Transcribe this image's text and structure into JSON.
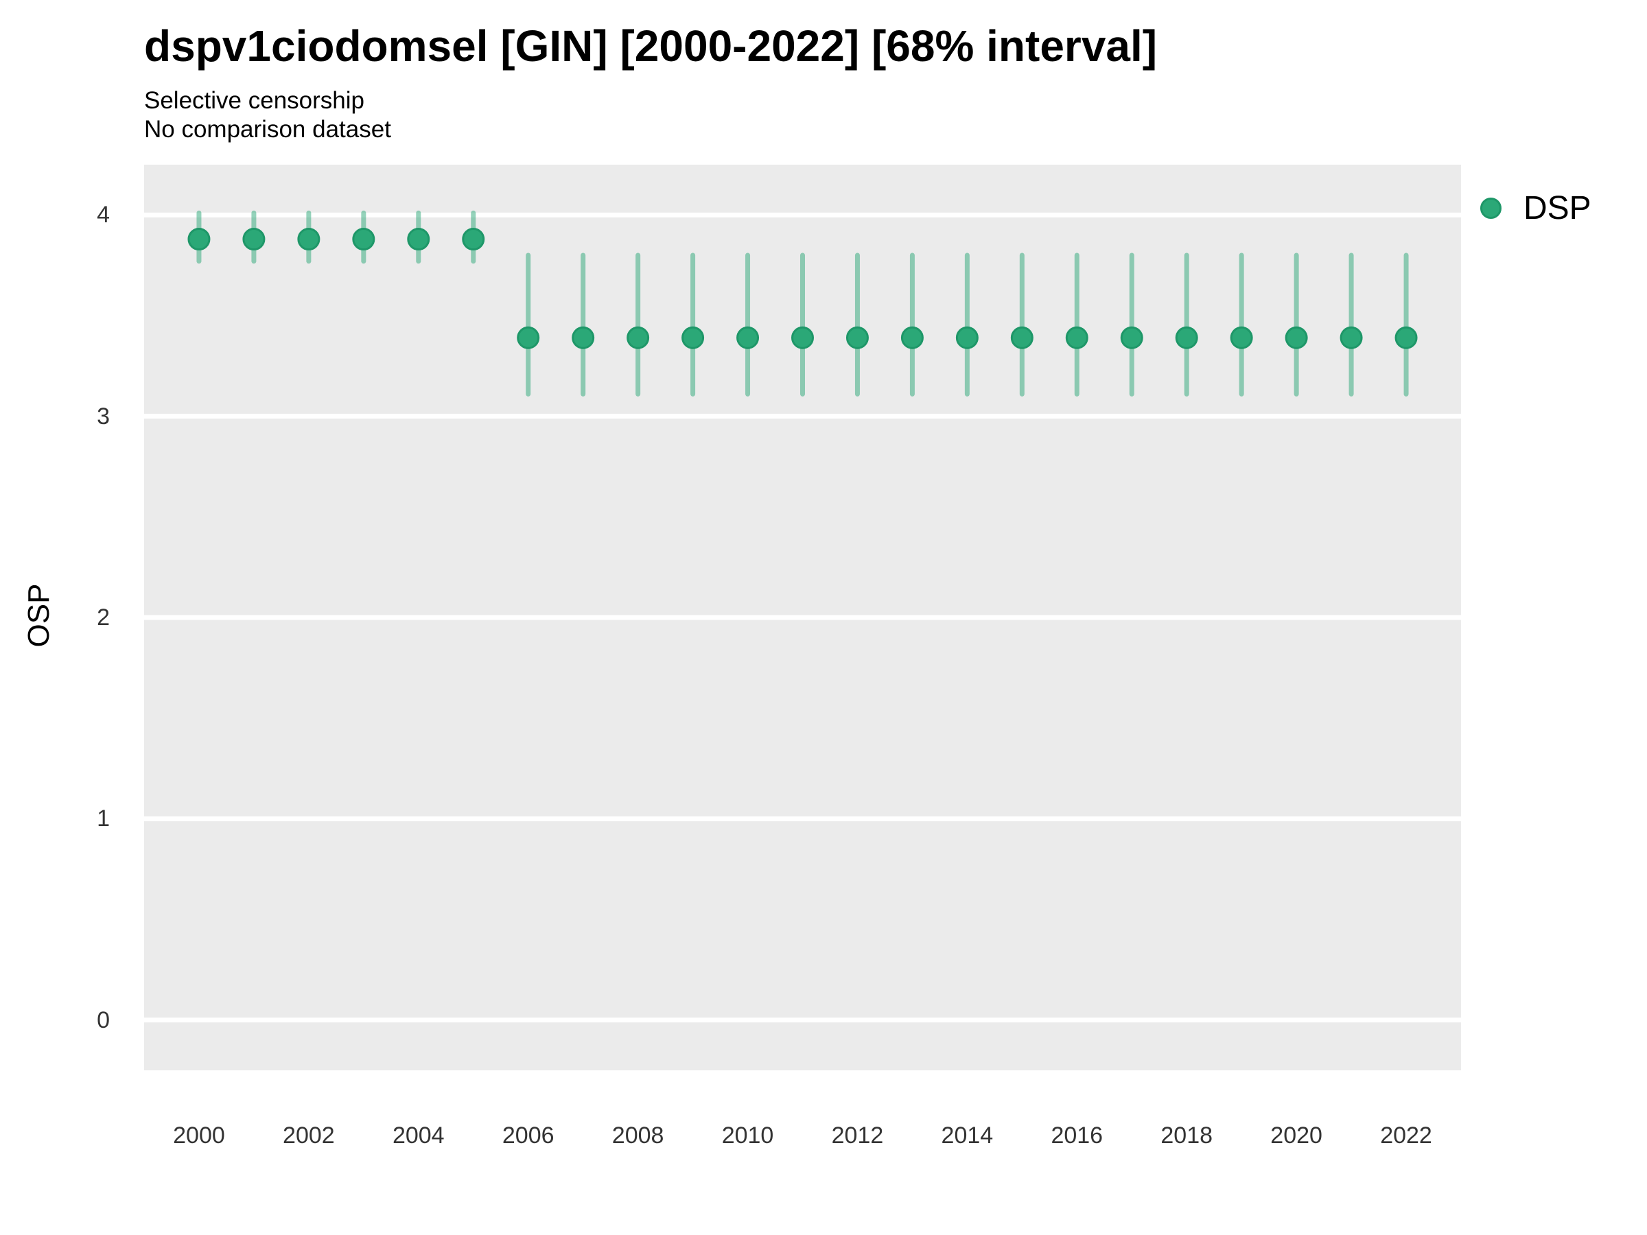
{
  "chart_data": {
    "type": "scatter",
    "subtype": "pointrange",
    "title": "dspv1ciodomsel [GIN] [2000-2022] [68% interval]",
    "subtitle_lines": [
      "Selective censorship",
      "No comparison dataset"
    ],
    "xlabel": "",
    "ylabel": "OSP",
    "legend": {
      "label": "DSP",
      "position": "right-top"
    },
    "grid": "horizontal-major-only",
    "x_range": [
      1999,
      2023
    ],
    "y_range": [
      -0.25,
      4.25
    ],
    "x_ticks": [
      2000,
      2002,
      2004,
      2006,
      2008,
      2010,
      2012,
      2014,
      2016,
      2018,
      2020,
      2022
    ],
    "y_ticks": [
      0,
      1,
      2,
      3,
      4
    ],
    "colors": {
      "point": "#2BA877",
      "point_stroke": "#1E9768",
      "interval": "rgba(43,168,119,0.5)",
      "panel_bg": "#EBEBEB",
      "gridline": "#FFFFFF",
      "title_text": "#000000",
      "tick_text": "#333333"
    },
    "series": [
      {
        "name": "DSP",
        "points": [
          {
            "year": 2000,
            "value": 3.88,
            "lo": 3.77,
            "hi": 4.01
          },
          {
            "year": 2001,
            "value": 3.88,
            "lo": 3.77,
            "hi": 4.01
          },
          {
            "year": 2002,
            "value": 3.88,
            "lo": 3.77,
            "hi": 4.01
          },
          {
            "year": 2003,
            "value": 3.88,
            "lo": 3.77,
            "hi": 4.01
          },
          {
            "year": 2004,
            "value": 3.88,
            "lo": 3.77,
            "hi": 4.01
          },
          {
            "year": 2005,
            "value": 3.88,
            "lo": 3.77,
            "hi": 4.01
          },
          {
            "year": 2006,
            "value": 3.39,
            "lo": 3.11,
            "hi": 3.8
          },
          {
            "year": 2007,
            "value": 3.39,
            "lo": 3.11,
            "hi": 3.8
          },
          {
            "year": 2008,
            "value": 3.39,
            "lo": 3.11,
            "hi": 3.8
          },
          {
            "year": 2009,
            "value": 3.39,
            "lo": 3.11,
            "hi": 3.8
          },
          {
            "year": 2010,
            "value": 3.39,
            "lo": 3.11,
            "hi": 3.8
          },
          {
            "year": 2011,
            "value": 3.39,
            "lo": 3.11,
            "hi": 3.8
          },
          {
            "year": 2012,
            "value": 3.39,
            "lo": 3.11,
            "hi": 3.8
          },
          {
            "year": 2013,
            "value": 3.39,
            "lo": 3.11,
            "hi": 3.8
          },
          {
            "year": 2014,
            "value": 3.39,
            "lo": 3.11,
            "hi": 3.8
          },
          {
            "year": 2015,
            "value": 3.39,
            "lo": 3.11,
            "hi": 3.8
          },
          {
            "year": 2016,
            "value": 3.39,
            "lo": 3.11,
            "hi": 3.8
          },
          {
            "year": 2017,
            "value": 3.39,
            "lo": 3.11,
            "hi": 3.8
          },
          {
            "year": 2018,
            "value": 3.39,
            "lo": 3.11,
            "hi": 3.8
          },
          {
            "year": 2019,
            "value": 3.39,
            "lo": 3.11,
            "hi": 3.8
          },
          {
            "year": 2020,
            "value": 3.39,
            "lo": 3.11,
            "hi": 3.8
          },
          {
            "year": 2021,
            "value": 3.39,
            "lo": 3.11,
            "hi": 3.8
          },
          {
            "year": 2022,
            "value": 3.39,
            "lo": 3.11,
            "hi": 3.8
          }
        ]
      }
    ]
  }
}
